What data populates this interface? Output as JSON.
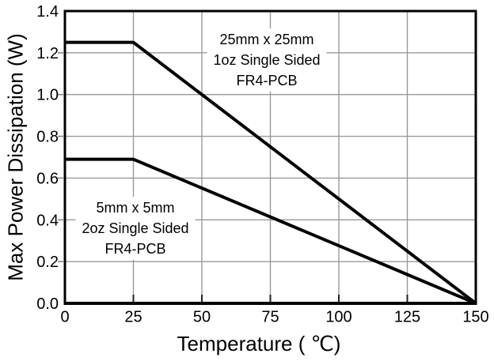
{
  "chart_data": {
    "type": "line",
    "title": "",
    "xlabel": "Temperature ( ℃)",
    "ylabel": "Max Power Dissipation (W)",
    "xlim": [
      0,
      150
    ],
    "ylim": [
      0,
      1.4
    ],
    "x_ticks": [
      0,
      25,
      50,
      75,
      100,
      125,
      150
    ],
    "x_tick_labels": [
      "0",
      "25",
      "50",
      "75",
      "100",
      "125",
      "150"
    ],
    "y_ticks": [
      0,
      0.2,
      0.4,
      0.6,
      0.8,
      1.0,
      1.2,
      1.4
    ],
    "y_tick_labels": [
      "0.0",
      "0.2",
      "0.4",
      "0.6",
      "0.8",
      "1.0",
      "1.2",
      "1.4"
    ],
    "grid": true,
    "legend_position": "none (labels drawn inside plot)",
    "series": [
      {
        "name": "25mm x 25mm 1oz Single Sided FR4-PCB",
        "x": [
          0,
          25,
          150
        ],
        "y": [
          1.25,
          1.25,
          0.0
        ],
        "color": "#000000"
      },
      {
        "name": "5mm x 5mm 2oz Single Sided FR4-PCB",
        "x": [
          0,
          25,
          150
        ],
        "y": [
          0.69,
          0.69,
          0.0
        ],
        "color": "#000000"
      }
    ],
    "annotations": [
      {
        "lines": [
          "25mm x 25mm",
          "1oz Single Sided",
          "FR4-PCB"
        ]
      },
      {
        "lines": [
          "5mm x 5mm",
          "2oz Single Sided",
          "FR4-PCB"
        ]
      }
    ]
  },
  "colors": {
    "background": "#ffffff",
    "axis": "#000000",
    "grid": "#999999",
    "tick_inner": "#222222",
    "tick_outer": "#888888",
    "series_line": "#000000",
    "text": "#000000"
  }
}
